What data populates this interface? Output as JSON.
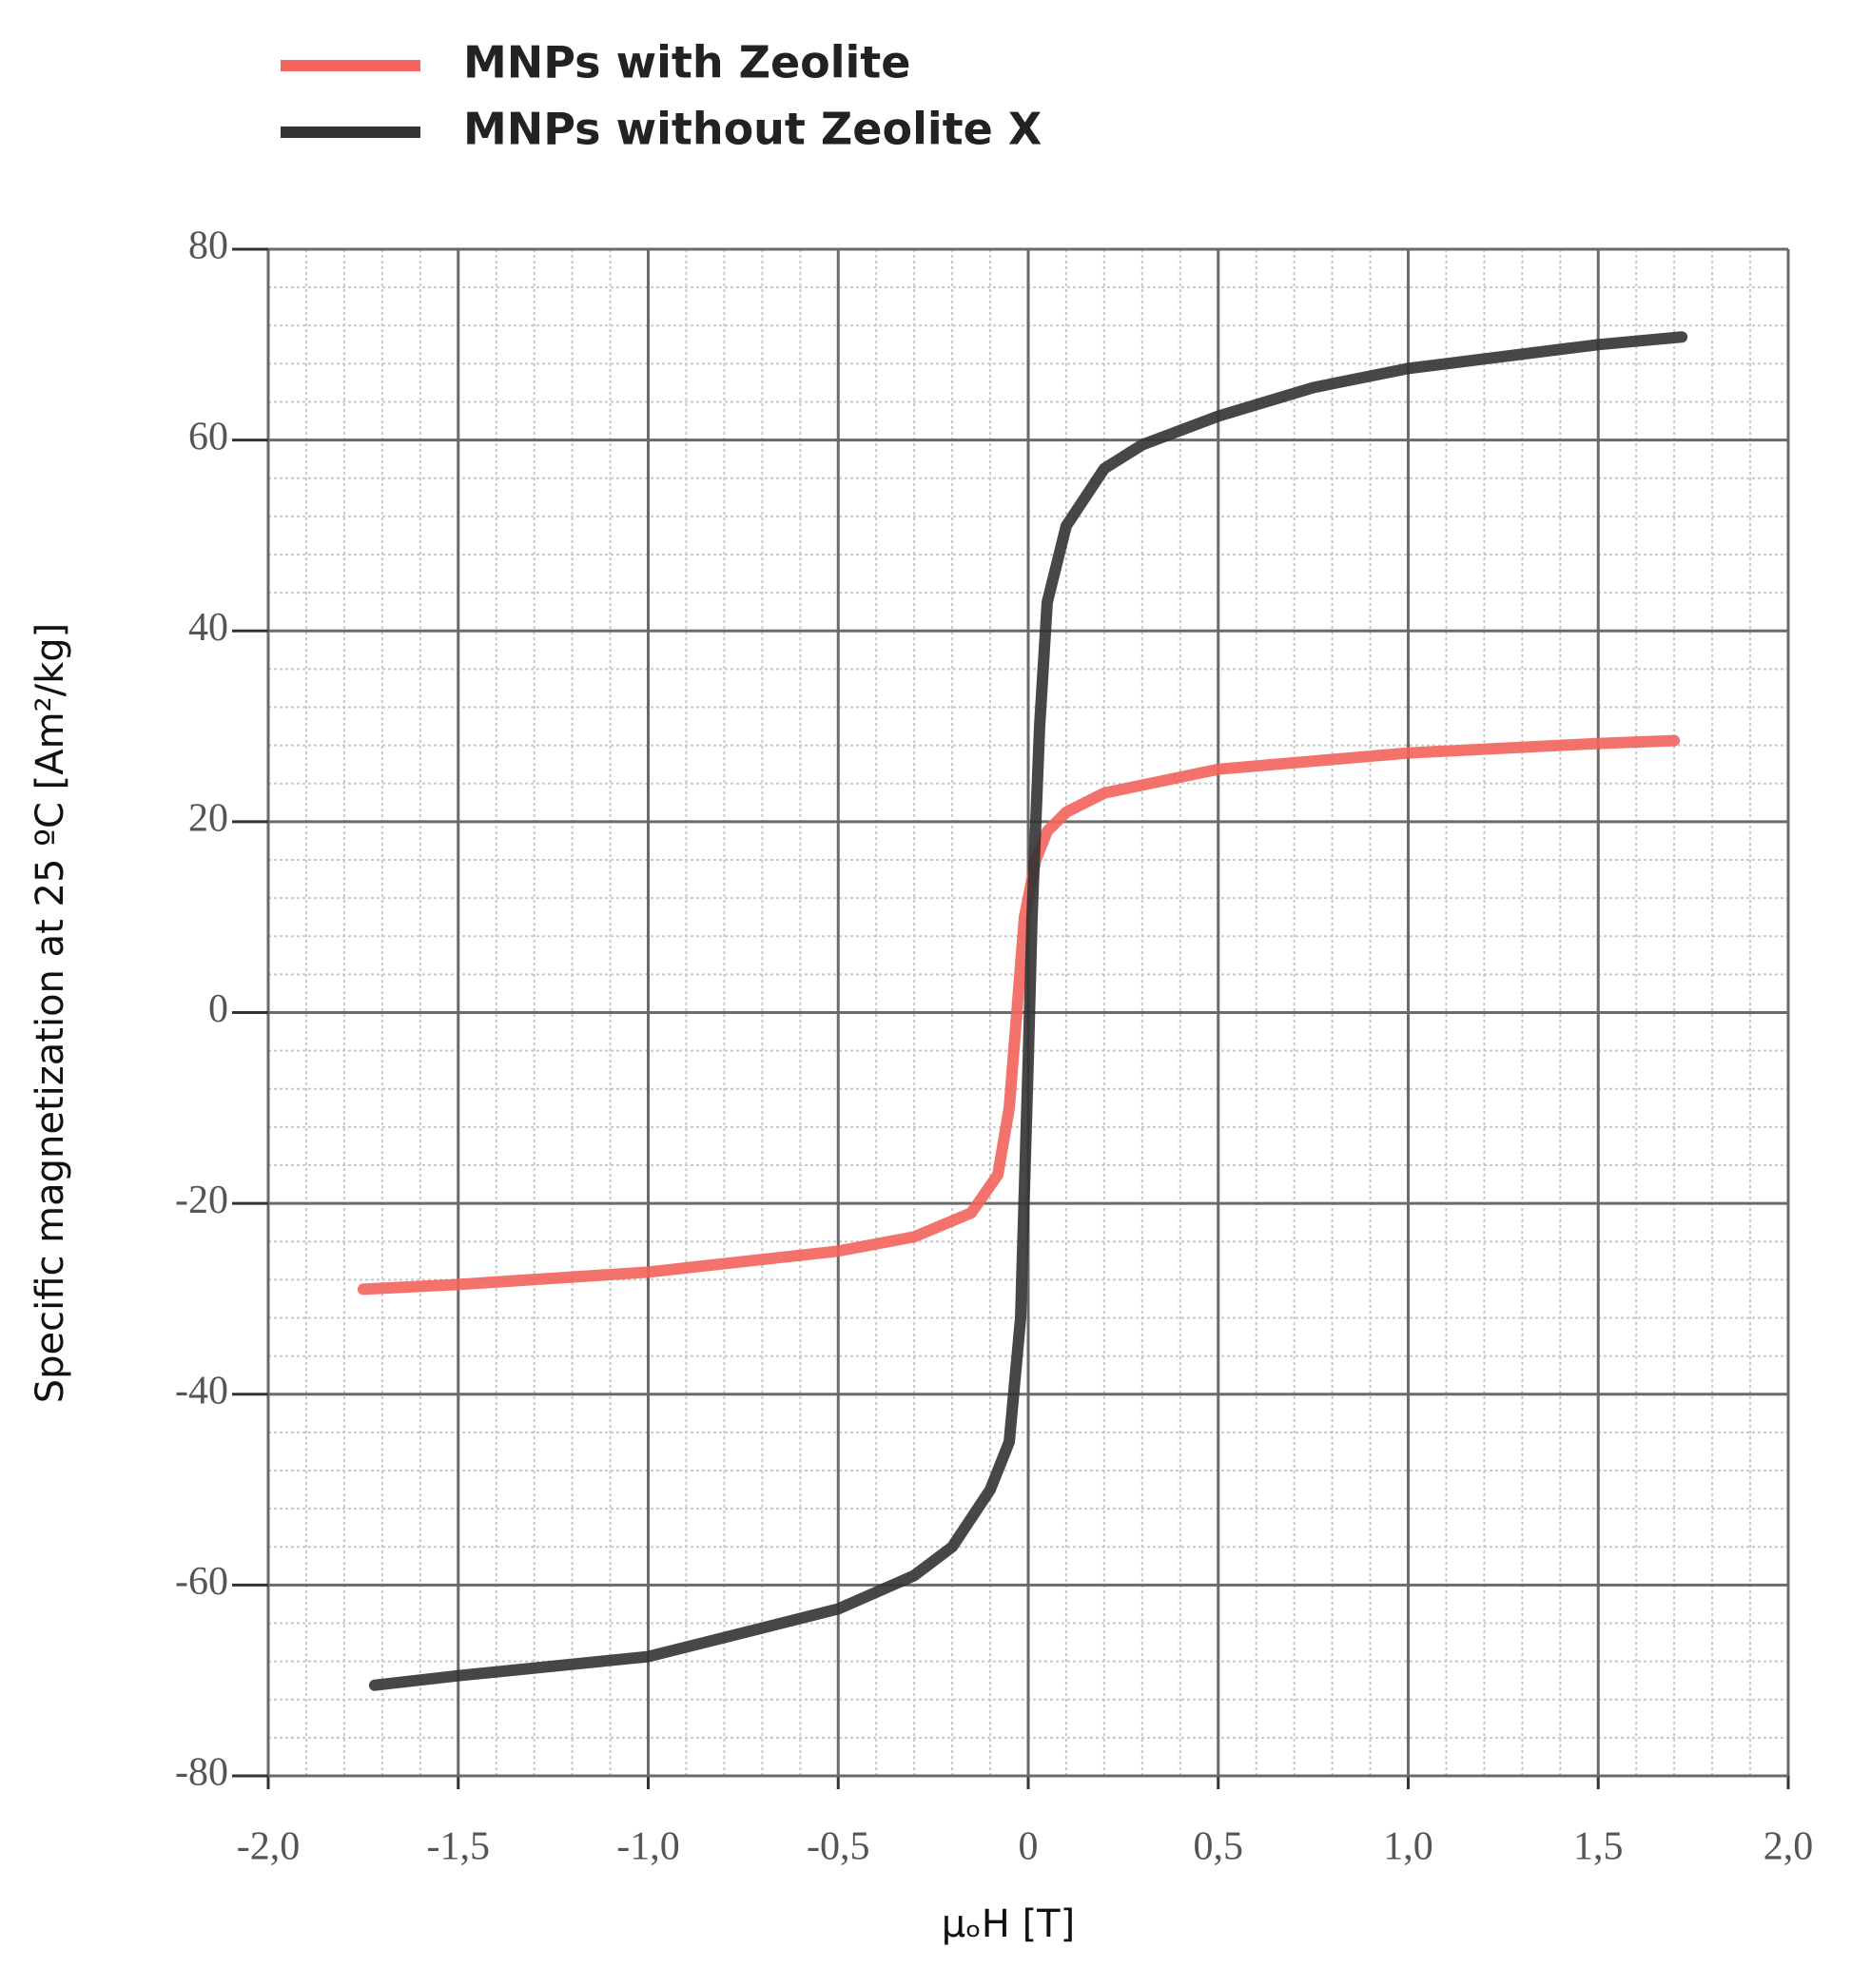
{
  "chart_data": {
    "type": "line",
    "x_label": "μₒH [T]",
    "y_label": "Specific magnetization at 25 ºC [Am²/kg]",
    "series": [
      {
        "name": "MNPs with Zeolite",
        "color": "#f2645c",
        "x": [
          -1.75,
          -1.5,
          -1.0,
          -0.5,
          -0.3,
          -0.15,
          -0.08,
          -0.05,
          -0.03,
          -0.01,
          0.02,
          0.05,
          0.1,
          0.2,
          0.5,
          1.0,
          1.5,
          1.7
        ],
        "values": [
          -29,
          -28.5,
          -27.2,
          -25,
          -23.5,
          -21,
          -17,
          -10,
          0,
          10,
          16,
          19,
          21,
          23,
          25.5,
          27.2,
          28.2,
          28.5
        ]
      },
      {
        "name": "MNPs without Zeolite X",
        "color": "#333333",
        "x": [
          -1.72,
          -1.5,
          -1.0,
          -0.5,
          -0.3,
          -0.2,
          -0.1,
          -0.05,
          -0.02,
          0,
          0.01,
          0.03,
          0.05,
          0.1,
          0.2,
          0.3,
          0.5,
          0.75,
          1.0,
          1.5,
          1.72
        ],
        "values": [
          -70.5,
          -69.5,
          -67.5,
          -62.5,
          -59,
          -56,
          -50,
          -45,
          -32,
          -5,
          10,
          30,
          43,
          51,
          57,
          59.5,
          62.5,
          65.5,
          67.5,
          70,
          70.8
        ]
      }
    ],
    "xlim": [
      -2,
      2
    ],
    "ylim": [
      -80,
      80
    ],
    "xticks": [
      {
        "value": -2,
        "label": "-2,0"
      },
      {
        "value": -1.5,
        "label": "-1,5"
      },
      {
        "value": -1,
        "label": "-1,0"
      },
      {
        "value": -0.5,
        "label": "-0,5"
      },
      0,
      {
        "value": 0.5,
        "label": "0,5"
      },
      {
        "value": 1,
        "label": "1,0"
      },
      {
        "value": 1.5,
        "label": "1,5"
      },
      {
        "value": 2,
        "label": "2,0"
      }
    ],
    "yticks": [
      -80,
      -60,
      -40,
      -20,
      0,
      20,
      40,
      60,
      80
    ],
    "grid": true,
    "x_minor_step": 0.1,
    "y_minor_step": 4
  }
}
